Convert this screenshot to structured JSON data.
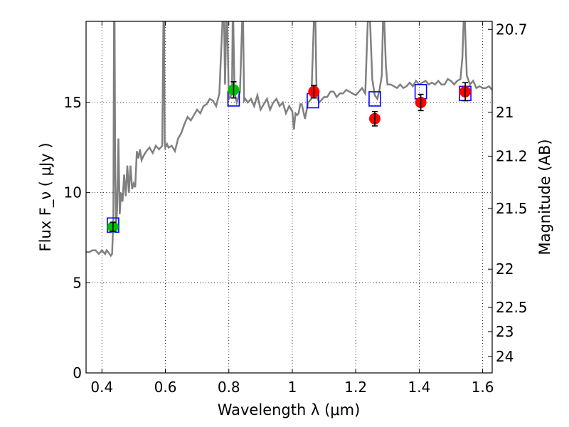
{
  "chart_data": {
    "type": "scatter",
    "xlabel": "Wavelength  λ (μm)",
    "ylabel": "Flux  F_ν  ( μJy )",
    "y2label": "Magnitude (AB)",
    "xlim": [
      0.35,
      1.63
    ],
    "ylim": [
      0,
      19.5
    ],
    "grid": true,
    "x_ticks": [
      "0.4",
      "0.6",
      "0.8",
      "1",
      "1.2",
      "1.4",
      "1.6"
    ],
    "x_tick_values": [
      0.4,
      0.6,
      0.8,
      1.0,
      1.2,
      1.4,
      1.6
    ],
    "y_ticks": [
      "0",
      "5",
      "10",
      "15"
    ],
    "y_tick_values": [
      0,
      5,
      10,
      15
    ],
    "y2_ticks": [
      {
        "label": "20.7",
        "mag": 20.7
      },
      {
        "label": "21",
        "mag": 21.0
      },
      {
        "label": "21.2",
        "mag": 21.2
      },
      {
        "label": "21.5",
        "mag": 21.5
      },
      {
        "label": "22",
        "mag": 22.0
      },
      {
        "label": "22.5",
        "mag": 22.5
      },
      {
        "label": "23",
        "mag": 23.0
      },
      {
        "label": "24",
        "mag": 24.0
      }
    ],
    "series": [
      {
        "kind": "spectrum",
        "color": "#808080",
        "x": [
          0.35,
          0.36,
          0.37,
          0.38,
          0.39,
          0.4,
          0.41,
          0.415,
          0.42,
          0.428,
          0.432,
          0.436,
          0.438,
          0.44,
          0.442,
          0.445,
          0.448,
          0.452,
          0.456,
          0.46,
          0.465,
          0.47,
          0.475,
          0.48,
          0.485,
          0.49,
          0.495,
          0.5,
          0.505,
          0.51,
          0.515,
          0.52,
          0.525,
          0.53,
          0.54,
          0.55,
          0.56,
          0.57,
          0.58,
          0.59,
          0.594,
          0.596,
          0.598,
          0.6,
          0.605,
          0.61,
          0.62,
          0.63,
          0.64,
          0.65,
          0.66,
          0.67,
          0.68,
          0.69,
          0.7,
          0.71,
          0.72,
          0.73,
          0.74,
          0.75,
          0.76,
          0.77,
          0.78,
          0.785,
          0.788,
          0.792,
          0.795,
          0.8,
          0.805,
          0.81,
          0.812,
          0.814,
          0.818,
          0.825,
          0.835,
          0.842,
          0.845,
          0.848,
          0.852,
          0.86,
          0.87,
          0.88,
          0.89,
          0.9,
          0.91,
          0.92,
          0.93,
          0.94,
          0.95,
          0.96,
          0.97,
          0.98,
          0.99,
          1.0,
          1.005,
          1.01,
          1.015,
          1.02,
          1.025,
          1.03,
          1.04,
          1.05,
          1.06,
          1.068,
          1.073,
          1.076,
          1.08,
          1.085,
          1.09,
          1.1,
          1.11,
          1.12,
          1.13,
          1.14,
          1.15,
          1.16,
          1.17,
          1.18,
          1.19,
          1.2,
          1.21,
          1.22,
          1.23,
          1.234,
          1.238,
          1.245,
          1.252,
          1.26,
          1.268,
          1.275,
          1.282,
          1.286,
          1.29,
          1.295,
          1.3,
          1.31,
          1.32,
          1.33,
          1.34,
          1.35,
          1.36,
          1.37,
          1.38,
          1.39,
          1.4,
          1.41,
          1.42,
          1.43,
          1.44,
          1.45,
          1.46,
          1.47,
          1.48,
          1.49,
          1.5,
          1.51,
          1.52,
          1.53,
          1.536,
          1.54,
          1.544,
          1.55,
          1.56,
          1.57,
          1.58,
          1.59,
          1.6,
          1.61,
          1.62,
          1.63
        ],
        "y": [
          6.7,
          6.7,
          6.8,
          6.8,
          6.6,
          6.8,
          6.6,
          6.8,
          6.7,
          6.5,
          6.6,
          8.5,
          19.5,
          19.5,
          11.0,
          8.0,
          9.2,
          13.0,
          8.8,
          10.0,
          9.5,
          11.0,
          9.8,
          11.5,
          10.0,
          11.5,
          10.2,
          10.5,
          10.3,
          12.3,
          11.9,
          12.4,
          11.8,
          12.0,
          12.3,
          12.5,
          12.2,
          12.6,
          12.4,
          12.6,
          19.5,
          19.5,
          12.8,
          12.5,
          12.7,
          12.5,
          12.6,
          12.3,
          13.0,
          13.3,
          13.8,
          14.2,
          14.0,
          14.3,
          14.6,
          14.4,
          14.8,
          14.9,
          15.2,
          15.1,
          14.8,
          15.5,
          19.5,
          19.5,
          16.0,
          19.5,
          19.5,
          15.2,
          15.3,
          15.6,
          19.5,
          19.5,
          15.5,
          15.0,
          15.6,
          19.5,
          19.5,
          15.1,
          15.2,
          15.0,
          15.2,
          14.8,
          15.4,
          14.6,
          14.9,
          15.2,
          14.6,
          15.0,
          15.2,
          14.8,
          15.0,
          14.4,
          14.8,
          14.5,
          13.5,
          14.4,
          14.3,
          14.4,
          14.9,
          14.9,
          14.1,
          15.0,
          15.2,
          19.5,
          19.5,
          16.0,
          15.2,
          15.0,
          15.1,
          15.3,
          15.3,
          15.6,
          15.6,
          15.3,
          15.5,
          15.5,
          15.7,
          15.6,
          15.5,
          15.4,
          15.6,
          15.8,
          15.5,
          17.5,
          19.5,
          19.5,
          16.3,
          15.4,
          15.2,
          15.7,
          16.5,
          19.5,
          19.5,
          17.0,
          16.0,
          16.0,
          15.9,
          15.8,
          16.0,
          15.8,
          15.9,
          16.1,
          15.9,
          16.2,
          16.0,
          16.1,
          16.2,
          16.0,
          16.1,
          16.0,
          16.2,
          16.0,
          16.0,
          16.3,
          16.2,
          16.0,
          16.2,
          16.3,
          17.5,
          19.5,
          19.5,
          16.5,
          16.0,
          16.2,
          15.8,
          15.9,
          15.8,
          15.8,
          15.9,
          15.7
        ]
      },
      {
        "kind": "model-boxes",
        "marker": "open-square",
        "color": "#0000ff",
        "x": [
          0.435,
          0.815,
          1.065,
          1.26,
          1.405,
          1.545
        ],
        "y": [
          8.2,
          15.2,
          15.1,
          15.2,
          15.6,
          15.5
        ]
      },
      {
        "kind": "green-points",
        "marker": "filled-circle",
        "color": "#00c000",
        "x": [
          0.435,
          0.815
        ],
        "y": [
          8.1,
          15.7
        ],
        "err": [
          0.25,
          0.45
        ]
      },
      {
        "kind": "red-points",
        "marker": "filled-circle",
        "color": "#ff0000",
        "x": [
          1.068,
          1.26,
          1.405,
          1.545
        ],
        "y": [
          15.6,
          14.1,
          15.0,
          15.6
        ],
        "err": [
          0.35,
          0.4,
          0.45,
          0.5
        ]
      }
    ]
  }
}
